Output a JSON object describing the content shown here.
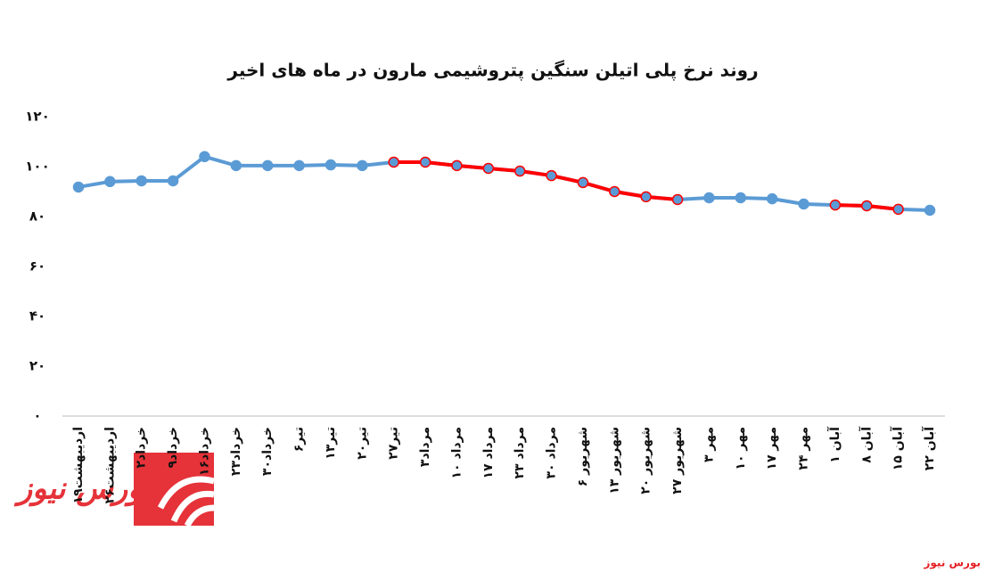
{
  "chart_data": {
    "type": "line",
    "title": "روند نرخ پلی اتیلن سنگین پتروشیمی مارون در ماه های اخیر",
    "categories": [
      "۱۹اردیبهشت",
      "۲۶اردیبهشت",
      "۲خرداد",
      "۹خرداد",
      "۱۶خرداد",
      "۲۳خرداد",
      "۳۰خرداد",
      "۶تیر",
      "۱۳تیر",
      "۲۰تیر",
      "۲۷تیر",
      "۳مرداد",
      "۱۰ مرداد",
      "۱۷ مرداد",
      "۲۳ مرداد",
      "۳۰ مرداد",
      "۶ شهریور",
      "۱۳ شهریور",
      "۲۰ شهریور",
      "۲۷ شهریور",
      "۳ مهر",
      "۱۰ مهر",
      "۱۷ مهر",
      "۲۴ مهر",
      "۱ آبان",
      "۸ آبان",
      "۱۵ آبان",
      "۲۲ آبان"
    ],
    "values": [
      91.8,
      94,
      94.3,
      94.3,
      104,
      100.4,
      100.4,
      100.4,
      100.7,
      100.4,
      101.8,
      101.8,
      100.4,
      99.3,
      98.2,
      96.4,
      93.6,
      90,
      87.9,
      86.8,
      87.5,
      87.5,
      87.1,
      85,
      84.6,
      84.3,
      82.9,
      82.5
    ],
    "color": "#5b9bd5",
    "marker_color": "#5b9bd5",
    "segment_colors": [
      "#5b9bd5",
      "#5b9bd5",
      "#5b9bd5",
      "#5b9bd5",
      "#5b9bd5",
      "#5b9bd5",
      "#5b9bd5",
      "#5b9bd5",
      "#5b9bd5",
      "#5b9bd5",
      "#ff0000",
      "#ff0000",
      "#ff0000",
      "#ff0000",
      "#ff0000",
      "#ff0000",
      "#ff0000",
      "#ff0000",
      "#ff0000",
      "#5b9bd5",
      "#5b9bd5",
      "#5b9bd5",
      "#5b9bd5",
      "#5b9bd5",
      "#ff0000",
      "#ff0000",
      "#5b9bd5"
    ],
    "ylim": [
      0,
      120
    ],
    "yticks": [
      {
        "value": 0,
        "label": "۰"
      },
      {
        "value": 20,
        "label": "۲۰"
      },
      {
        "value": 40,
        "label": "۴۰"
      },
      {
        "value": 60,
        "label": "۶۰"
      },
      {
        "value": 80,
        "label": "۸۰"
      },
      {
        "value": 100,
        "label": "۱۰۰"
      },
      {
        "value": 120,
        "label": "۱۲۰"
      }
    ],
    "grid": false,
    "watermark": "بورس نیوز"
  }
}
